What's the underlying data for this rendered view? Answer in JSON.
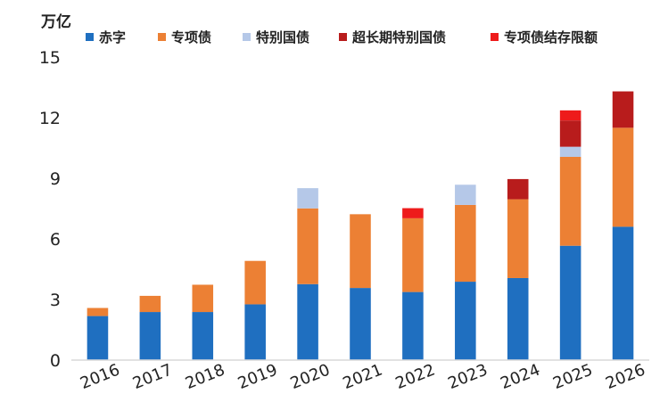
{
  "chart_data": {
    "type": "bar",
    "stacked": true,
    "title": "",
    "xlabel": "",
    "ylabel": "万亿",
    "ylim": [
      0,
      15
    ],
    "yticks": [
      0,
      3,
      6,
      9,
      12,
      15
    ],
    "grid": false,
    "legend_position": "top",
    "categories": [
      "2016",
      "2017",
      "2018",
      "2019",
      "2020",
      "2021",
      "2022",
      "2023",
      "2024",
      "2025",
      "2026"
    ],
    "series": [
      {
        "name": "赤字",
        "color": "#1f6fc0",
        "values": [
          2.18,
          2.38,
          2.38,
          2.76,
          3.76,
          3.57,
          3.37,
          3.88,
          4.06,
          5.66,
          6.6
        ]
      },
      {
        "name": "专项债",
        "color": "#ec8034",
        "values": [
          0.4,
          0.8,
          1.35,
          2.15,
          3.75,
          3.65,
          3.65,
          3.8,
          3.9,
          4.4,
          4.9
        ]
      },
      {
        "name": "特别国债",
        "color": "#b5c8e8",
        "values": [
          0,
          0,
          0,
          0,
          1.0,
          0,
          0,
          1.0,
          0,
          0.5,
          0
        ]
      },
      {
        "name": "超长期特别国债",
        "color": "#b81c1c",
        "values": [
          0,
          0,
          0,
          0,
          0,
          0,
          0,
          0,
          1.0,
          1.3,
          1.8
        ]
      },
      {
        "name": "专项债结存限额",
        "color": "#ee1b1b",
        "values": [
          0,
          0,
          0,
          0,
          0,
          0,
          0.5,
          0,
          0,
          0.5,
          0
        ]
      }
    ]
  }
}
